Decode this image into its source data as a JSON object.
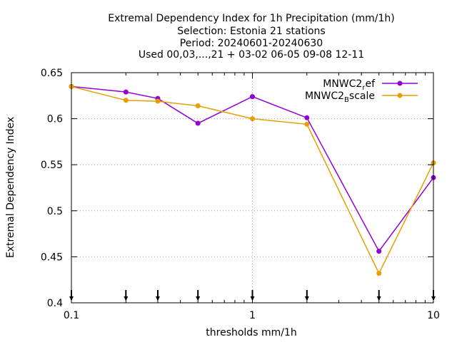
{
  "chart_data": {
    "type": "line",
    "title_lines": [
      "Extremal Dependency Index  for 1h Precipitation (mm/1h)",
      "Selection: Estonia     21 stations",
      "Period: 20240601-20240630",
      "Used 00,03,...,21 + 03-02 06-05 09-08 12-11"
    ],
    "xlabel": "thresholds mm/1h",
    "ylabel": "Extremal Dependency Index",
    "x_scale": "log",
    "xlim": [
      0.1,
      10
    ],
    "ylim": [
      0.4,
      0.65
    ],
    "x_ticks": [
      {
        "value": 0.1,
        "label": "0.1"
      },
      {
        "value": 1,
        "label": "1"
      },
      {
        "value": 10,
        "label": "10"
      }
    ],
    "y_ticks": [
      {
        "value": 0.4,
        "label": "0.4"
      },
      {
        "value": 0.45,
        "label": "0.45"
      },
      {
        "value": 0.5,
        "label": "0.5"
      },
      {
        "value": 0.55,
        "label": "0.55"
      },
      {
        "value": 0.6,
        "label": "0.6"
      },
      {
        "value": 0.65,
        "label": "0.65"
      }
    ],
    "grid": true,
    "legend_position": "top-right",
    "threshold_markers": [
      0.1,
      0.2,
      0.3,
      0.5,
      1,
      2,
      5,
      10
    ],
    "x": [
      0.1,
      0.2,
      0.3,
      0.5,
      1,
      2,
      5,
      10
    ],
    "series": [
      {
        "name_main": "MNWC2",
        "name_sub": "r",
        "name_tail": "ef",
        "color": "#9400d3",
        "values": [
          0.635,
          0.629,
          0.622,
          0.595,
          0.624,
          0.601,
          0.456,
          0.536
        ]
      },
      {
        "name_main": "MNWC2",
        "name_sub": "B",
        "name_tail": "scale",
        "color": "#e69f00",
        "values": [
          0.635,
          0.62,
          0.619,
          0.614,
          0.6,
          0.594,
          0.432,
          0.552
        ]
      }
    ]
  }
}
